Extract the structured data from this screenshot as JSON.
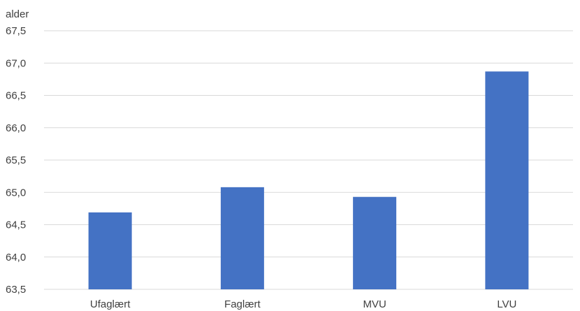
{
  "chart_data": {
    "type": "bar",
    "unit_label": "alder",
    "categories": [
      "Ufaglært",
      "Faglært",
      "MVU",
      "LVU"
    ],
    "series": [
      {
        "values": [
          64.69,
          65.08,
          64.93,
          66.87
        ]
      }
    ],
    "ylim": [
      63.5,
      67.5
    ],
    "yticks": [
      63.5,
      64.0,
      64.5,
      65.0,
      65.5,
      66.0,
      66.5,
      67.0,
      67.5
    ],
    "ytick_labels": [
      "63,5",
      "64,0",
      "64,5",
      "65,0",
      "65,5",
      "66,0",
      "66,5",
      "67,0",
      "67,5"
    ],
    "grid": true,
    "legend": "none",
    "bar_color": "#4472c4"
  }
}
